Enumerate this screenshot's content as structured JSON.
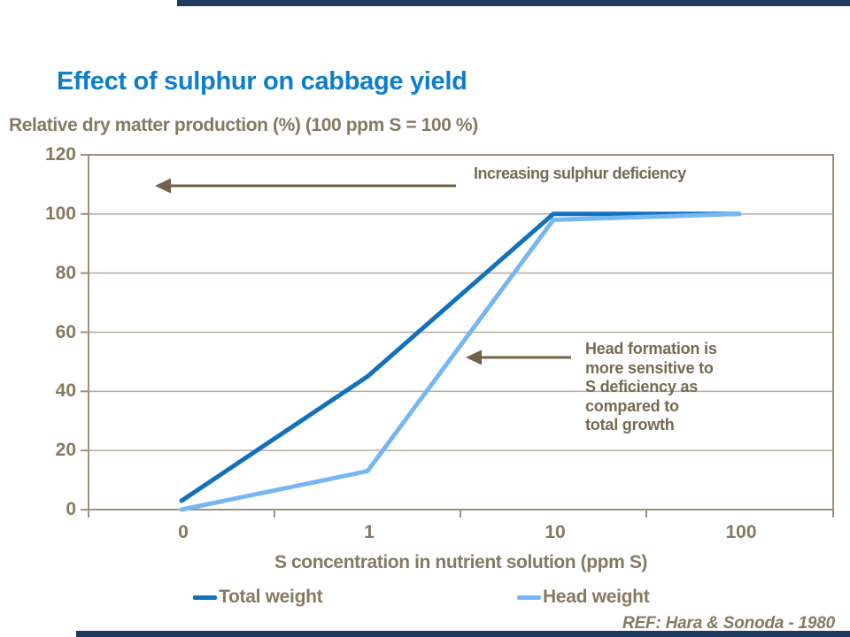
{
  "page": {
    "title": "Effect of sulphur on cabbage yield",
    "reference": "REF: Hara & Sonoda - 1980"
  },
  "colors": {
    "accent_bar": "#1E3A5F",
    "title_blue": "#0E7DCB",
    "text_brown": "#867962",
    "annotation_brown": "#756A52",
    "grid_line": "#B8AC9E",
    "axis_line": "#9C9080",
    "arrow_brown": "#6F6249"
  },
  "annotations": {
    "top": {
      "text": "Increasing sulphur deficiency"
    },
    "side": {
      "text": "Head formation is\nmore sensitive to\nS deficiency as\ncompared to\ntotal growth"
    }
  },
  "chart_data": {
    "type": "line",
    "title": "Effect of sulphur on cabbage yield",
    "categories": [
      "0",
      "1",
      "10",
      "100"
    ],
    "series": [
      {
        "name": "Total weight",
        "color": "#1171BD",
        "values": [
          3,
          45,
          100,
          100
        ]
      },
      {
        "name": "Head weight",
        "color": "#76B7F3",
        "values": [
          0,
          13,
          98,
          100
        ]
      }
    ],
    "xlabel": "S concentration in nutrient solution (ppm S)",
    "ylabel": "Relative dry matter production (%) (100 ppm S = 100 %)",
    "ylim": [
      0,
      120
    ],
    "ytick_step": 20,
    "grid": "horizontal",
    "legend_position": "bottom"
  }
}
